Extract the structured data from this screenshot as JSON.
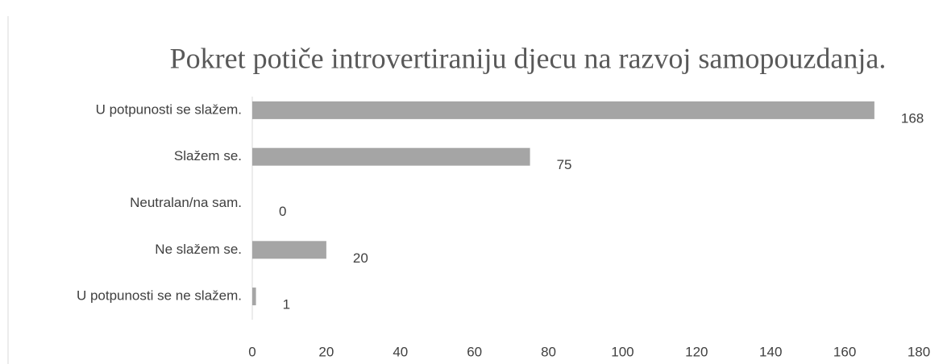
{
  "chart_data": {
    "type": "bar",
    "orientation": "horizontal",
    "title": "Pokret potiče introvertiraniju djecu na razvoj samopouzdanja.",
    "categories": [
      "U potpunosti se slažem.",
      "Slažem se.",
      "Neutralan/na sam.",
      "Ne slažem se.",
      "U potpunosti se ne slažem."
    ],
    "values": [
      168,
      75,
      0,
      20,
      1
    ],
    "color": "#a5a5a5",
    "xlim": [
      0,
      180
    ],
    "xticks": [
      0,
      20,
      40,
      60,
      80,
      100,
      120,
      140,
      160,
      180
    ],
    "grid": false
  }
}
